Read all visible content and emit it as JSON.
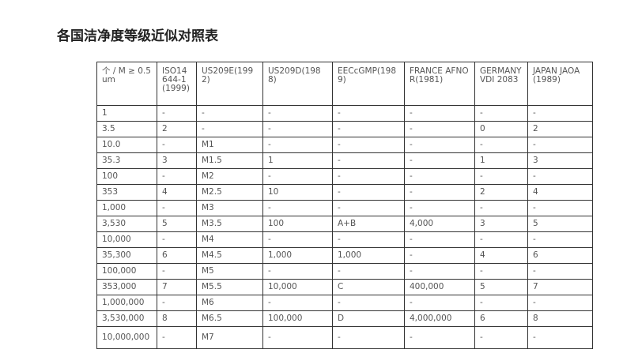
{
  "title": "各国洁净度等级近似对照表",
  "table": {
    "headers": [
      "个 / M ≥ 0.5um",
      "ISO14644-1(1999)",
      "US209E(1992)",
      "US209D(1988)",
      "EECcGMP(1989)",
      "FRANCE AFNOR(1981)",
      "GERMANY VDI 2083",
      "JAPAN JAOA(1989)"
    ],
    "rows": [
      [
        "1",
        "-",
        "-",
        "-",
        "-",
        "-",
        "-",
        "-"
      ],
      [
        "3.5",
        "2",
        "-",
        "-",
        "-",
        "-",
        "0",
        "2"
      ],
      [
        "10.0",
        "-",
        "M1",
        "-",
        "-",
        "-",
        "-",
        "-"
      ],
      [
        "35.3",
        "3",
        "M1.5",
        "1",
        "-",
        "-",
        "1",
        "3"
      ],
      [
        "100",
        "-",
        "M2",
        "-",
        "-",
        "-",
        "-",
        "-"
      ],
      [
        "353",
        "4",
        "M2.5",
        "10",
        "-",
        "-",
        "2",
        "4"
      ],
      [
        "1,000",
        "-",
        "M3",
        "-",
        "-",
        "-",
        "-",
        "-"
      ],
      [
        "3,530",
        "5",
        "M3.5",
        "100",
        "A+B",
        "4,000",
        "3",
        "5"
      ],
      [
        "10,000",
        "-",
        "M4",
        "-",
        "-",
        "-",
        "-",
        "-"
      ],
      [
        "35,300",
        "6",
        "M4.5",
        "1,000",
        "1,000",
        "-",
        "4",
        "6"
      ],
      [
        "100,000",
        "-",
        "M5",
        "-",
        "-",
        "-",
        "-",
        "-"
      ],
      [
        "353,000",
        "7",
        "M5.5",
        "10,000",
        "C",
        "400,000",
        "5",
        "7"
      ],
      [
        "1,000,000",
        "-",
        "M6",
        "-",
        "-",
        "-",
        "-",
        "-"
      ],
      [
        "3,530,000",
        "8",
        "M6.5",
        "100,000",
        "D",
        "4,000,000",
        "6",
        "8"
      ],
      [
        "10,000,000",
        "-",
        "M7",
        "-",
        "-",
        "-",
        "-",
        "-"
      ]
    ]
  }
}
